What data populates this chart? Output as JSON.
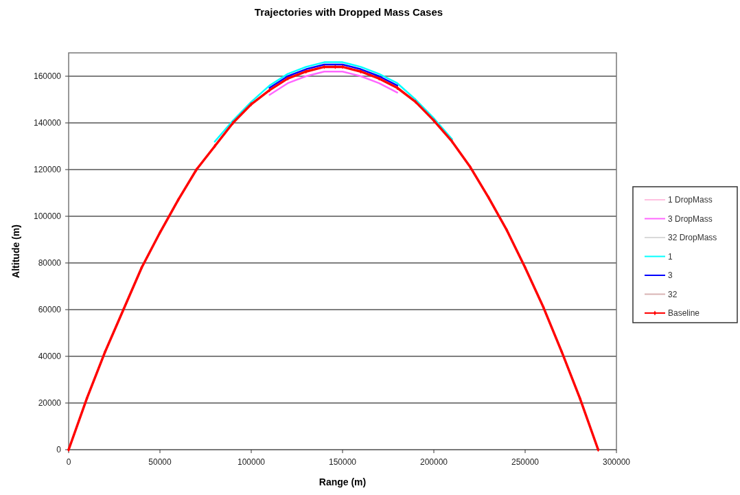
{
  "chart_data": {
    "type": "line",
    "title": "Trajectories with Dropped Mass Cases",
    "xlabel": "Range (m)",
    "ylabel": "Altitude (m)",
    "x": [
      0,
      10000,
      20000,
      30000,
      40000,
      50000,
      60000,
      70000,
      80000,
      90000,
      100000,
      110000,
      120000,
      130000,
      140000,
      146000,
      150000,
      160000,
      170000,
      180000,
      190000,
      200000,
      210000,
      220000,
      230000,
      240000,
      250000,
      260000,
      270000,
      280000,
      290000
    ],
    "series": [
      {
        "name": "1 DropMass",
        "color": "#ffc0e0",
        "values": [
          null,
          null,
          null,
          null,
          null,
          null,
          null,
          null,
          null,
          null,
          null,
          null,
          null,
          null,
          null,
          null,
          null,
          null,
          null,
          null,
          null,
          null,
          null,
          null,
          null,
          null,
          null,
          null,
          null,
          null,
          null
        ]
      },
      {
        "name": "3 DropMass",
        "color": "#ff66ff",
        "values": [
          null,
          null,
          null,
          null,
          null,
          null,
          null,
          null,
          null,
          null,
          null,
          152000,
          157000,
          160000,
          162000,
          162000,
          162000,
          160000,
          157000,
          153000,
          null,
          null,
          null,
          null,
          null,
          null,
          null,
          null,
          null,
          null,
          null
        ]
      },
      {
        "name": "32 DropMass",
        "color": "#d9d9d9",
        "values": [
          null,
          null,
          null,
          null,
          null,
          null,
          null,
          null,
          null,
          null,
          null,
          null,
          null,
          null,
          null,
          null,
          null,
          null,
          null,
          null,
          null,
          null,
          null,
          null,
          null,
          null,
          null,
          null,
          null,
          null,
          null
        ]
      },
      {
        "name": "1",
        "color": "#00ffff",
        "values": [
          null,
          null,
          null,
          null,
          null,
          null,
          null,
          null,
          132000,
          141000,
          149000,
          156000,
          161000,
          164000,
          166000,
          166000,
          166000,
          164000,
          161000,
          157000,
          150000,
          142000,
          133000,
          null,
          null,
          null,
          null,
          null,
          null,
          null,
          null
        ]
      },
      {
        "name": "3",
        "color": "#0000ff",
        "values": [
          null,
          null,
          null,
          null,
          null,
          null,
          null,
          null,
          null,
          null,
          null,
          155000,
          160000,
          163000,
          165000,
          165000,
          165000,
          163000,
          160000,
          156000,
          null,
          null,
          null,
          null,
          null,
          null,
          null,
          null,
          null,
          null,
          null
        ]
      },
      {
        "name": "32",
        "color": "#d9b3b3",
        "values": [
          null,
          null,
          null,
          null,
          null,
          null,
          null,
          null,
          null,
          null,
          null,
          null,
          null,
          null,
          null,
          null,
          null,
          null,
          null,
          null,
          null,
          null,
          null,
          null,
          null,
          null,
          null,
          null,
          null,
          null,
          null
        ]
      },
      {
        "name": "Baseline",
        "color": "#ff0000",
        "marker": "diamond",
        "values": [
          0,
          22000,
          42000,
          60000,
          78000,
          93000,
          107000,
          120000,
          130000,
          140000,
          148000,
          154000,
          159000,
          162000,
          164000,
          164000,
          164000,
          162000,
          159000,
          155000,
          149000,
          141000,
          132000,
          121000,
          108000,
          94000,
          78000,
          61000,
          42000,
          22000,
          0
        ]
      }
    ],
    "xlim": [
      0,
      300000
    ],
    "xticks": [
      0,
      50000,
      100000,
      150000,
      200000,
      250000,
      300000
    ],
    "ylim": [
      0,
      170000
    ],
    "yticks": [
      0,
      20000,
      40000,
      60000,
      80000,
      100000,
      120000,
      140000,
      160000
    ],
    "grid": "y",
    "legend": "right"
  }
}
